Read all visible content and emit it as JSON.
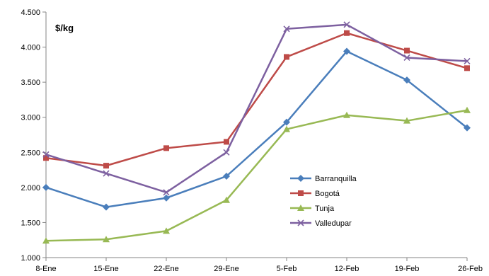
{
  "chart_data": {
    "type": "line",
    "title": "",
    "unit_label": "$/kg",
    "xlabel": "",
    "ylabel": "",
    "categories": [
      "8-Ene",
      "15-Ene",
      "22-Ene",
      "29-Ene",
      "5-Feb",
      "12-Feb",
      "19-Feb",
      "26-Feb"
    ],
    "ylim": [
      1000,
      4500
    ],
    "yticks": [
      1000,
      1500,
      2000,
      2500,
      3000,
      3500,
      4000,
      4500
    ],
    "ytick_labels": [
      "1.000",
      "1.500",
      "2.000",
      "2.500",
      "3.000",
      "3.500",
      "4.000",
      "4.500"
    ],
    "grid": false,
    "legend_position": "center-right",
    "series": [
      {
        "name": "Barranquilla",
        "color": "#4a7ebb",
        "marker": "diamond",
        "values": [
          2000,
          1720,
          1850,
          2160,
          2930,
          3940,
          3530,
          2850
        ]
      },
      {
        "name": "Bogotá",
        "color": "#be4b48",
        "marker": "square",
        "values": [
          2420,
          2310,
          2560,
          2650,
          3860,
          4200,
          3950,
          3700
        ]
      },
      {
        "name": "Tunja",
        "color": "#98b954",
        "marker": "triangle",
        "values": [
          1240,
          1260,
          1380,
          1820,
          2830,
          3030,
          2950,
          3100
        ]
      },
      {
        "name": "Valledupar",
        "color": "#7d60a0",
        "marker": "x",
        "values": [
          2470,
          2200,
          1930,
          2500,
          4260,
          4320,
          3850,
          3800
        ]
      }
    ]
  }
}
